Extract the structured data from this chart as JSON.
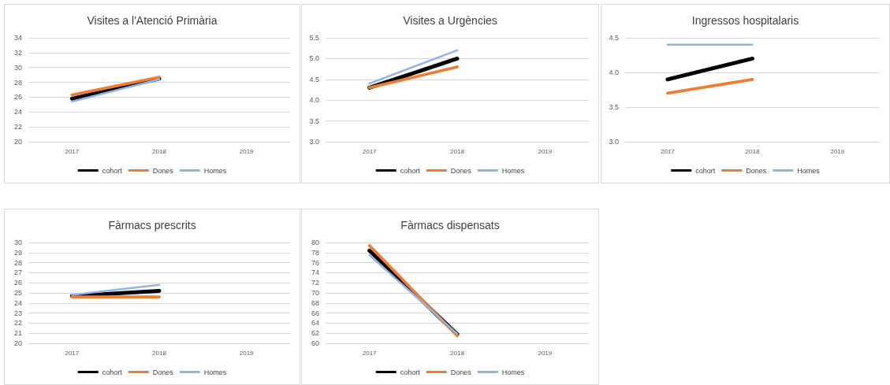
{
  "chart_data": [
    {
      "type": "line",
      "title": "Visites a l'Atenció Primària",
      "categories": [
        "2017",
        "2018",
        "2019"
      ],
      "ylim": [
        20,
        34
      ],
      "yticks": [
        20,
        22,
        24,
        26,
        28,
        30,
        32,
        34
      ],
      "grid": "y",
      "legend": "bottom",
      "marker": "none",
      "series": [
        {
          "name": "cohort",
          "color": "#000000",
          "values": [
            25.8,
            28.5,
            null
          ]
        },
        {
          "name": "Dones",
          "color": "#ed7d31",
          "values": [
            26.3,
            28.7,
            null
          ]
        },
        {
          "name": "Homes",
          "color": "#8fb4ea",
          "values": [
            25.4,
            28.4,
            null
          ]
        }
      ]
    },
    {
      "type": "line",
      "title": "Visites a Urgències",
      "categories": [
        "2017",
        "2018",
        "2019"
      ],
      "ylim": [
        3,
        5.5
      ],
      "yticks": [
        {
          "value": 3,
          "label": "3.0"
        },
        3.5,
        {
          "value": 4,
          "label": "4.0"
        },
        4.5,
        {
          "value": 5,
          "label": "5.0"
        },
        5.5
      ],
      "grid": "y",
      "legend": "bottom",
      "marker": "none",
      "series": [
        {
          "name": "cohort",
          "color": "#000000",
          "values": [
            4.3,
            5.0,
            null
          ]
        },
        {
          "name": "Dones",
          "color": "#ed7d31",
          "values": [
            4.3,
            4.8,
            null
          ]
        },
        {
          "name": "Homes",
          "color": "#8fb4ea",
          "values": [
            4.4,
            5.2,
            null
          ]
        }
      ]
    },
    {
      "type": "line",
      "title": "Ingressos hospitalaris",
      "categories": [
        "2017",
        "2018",
        "2019"
      ],
      "ylim": [
        3,
        4.5
      ],
      "yticks": [
        {
          "value": 3,
          "label": "3.0"
        },
        3.5,
        {
          "value": 4,
          "label": "4.0"
        },
        4.5
      ],
      "grid": "y",
      "legend": "bottom",
      "marker": "none",
      "series": [
        {
          "name": "cohort",
          "color": "#000000",
          "values": [
            3.9,
            4.2,
            null
          ]
        },
        {
          "name": "Dones",
          "color": "#ed7d31",
          "values": [
            3.7,
            3.9,
            null
          ]
        },
        {
          "name": "Homes",
          "color": "#8fb4ea",
          "values": [
            4.4,
            4.4,
            null
          ]
        }
      ]
    },
    {
      "type": "line",
      "title": "Fàrmacs prescrits",
      "categories": [
        "2017",
        "2018",
        "2019"
      ],
      "ylim": [
        20,
        30
      ],
      "yticks": [
        20,
        21,
        22,
        23,
        24,
        25,
        26,
        27,
        28,
        29,
        30
      ],
      "grid": "y",
      "legend": "bottom",
      "marker": "none",
      "series": [
        {
          "name": "cohort",
          "color": "#000000",
          "values": [
            24.7,
            25.2,
            null
          ]
        },
        {
          "name": "Dones",
          "color": "#ed7d31",
          "values": [
            24.6,
            24.6,
            null
          ]
        },
        {
          "name": "Homes",
          "color": "#8fb4ea",
          "values": [
            24.8,
            25.8,
            null
          ]
        }
      ]
    },
    {
      "type": "line",
      "title": "Fàrmacs dispensats",
      "categories": [
        "2017",
        "2018",
        "2019"
      ],
      "ylim": [
        60,
        80
      ],
      "yticks": [
        60,
        62,
        64,
        66,
        68,
        70,
        72,
        74,
        76,
        78,
        80
      ],
      "grid": "y",
      "legend": "bottom",
      "marker": "none",
      "series": [
        {
          "name": "cohort",
          "color": "#000000",
          "values": [
            78.4,
            61.8,
            null
          ]
        },
        {
          "name": "Dones",
          "color": "#ed7d31",
          "values": [
            79.4,
            61.5,
            null
          ]
        },
        {
          "name": "Homes",
          "color": "#8fb4ea",
          "values": [
            77.5,
            61.9,
            null
          ]
        }
      ]
    }
  ]
}
